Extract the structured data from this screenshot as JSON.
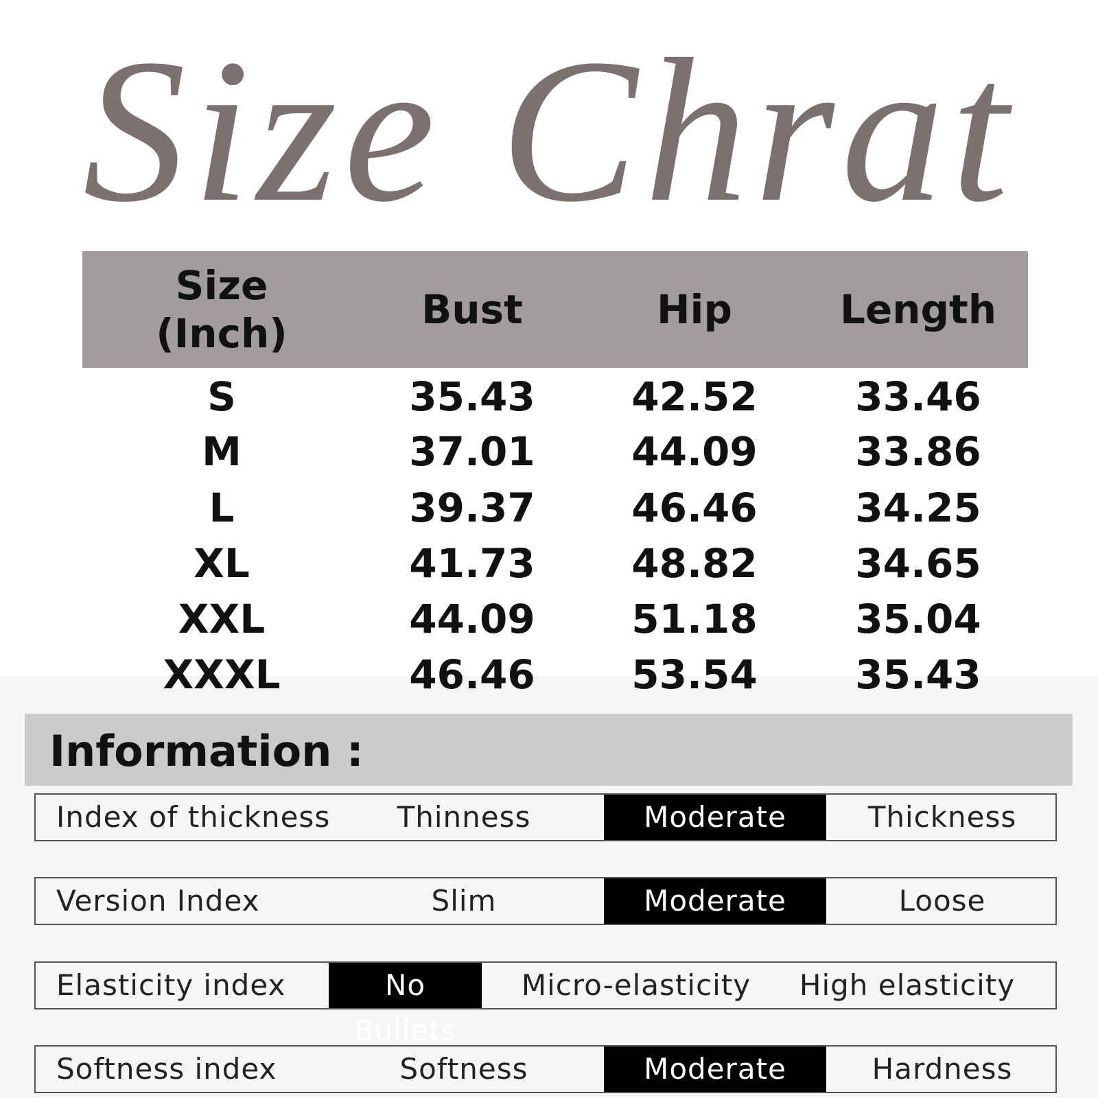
{
  "header": {
    "title": "Size Chrat"
  },
  "table": {
    "columns": [
      "Size (Inch)",
      "Bust",
      "Hip",
      "Length"
    ],
    "rows": [
      [
        "S",
        "35.43",
        "42.52",
        "33.46"
      ],
      [
        "M",
        "37.01",
        "44.09",
        "33.86"
      ],
      [
        "L",
        "39.37",
        "46.46",
        "34.25"
      ],
      [
        "XL",
        "41.73",
        "48.82",
        "34.65"
      ],
      [
        "XXL",
        "44.09",
        "51.18",
        "35.04"
      ],
      [
        "XXXL",
        "46.46",
        "53.54",
        "35.43"
      ]
    ]
  },
  "information": {
    "title": "Information :",
    "rows": [
      {
        "label": "Index of thickness",
        "options": [
          "Thinness",
          "Moderate",
          "Thickness"
        ],
        "selected": 1
      },
      {
        "label": "Version Index",
        "options": [
          "Slim",
          "Moderate",
          "Loose"
        ],
        "selected": 1
      },
      {
        "label": "Elasticity index",
        "options": [
          "No Bullets",
          "Micro-elasticity",
          "High elasticity"
        ],
        "selected": 0
      },
      {
        "label": "Softness index",
        "options": [
          "Softness",
          "Moderate",
          "Hardness"
        ],
        "selected": 1
      }
    ]
  }
}
